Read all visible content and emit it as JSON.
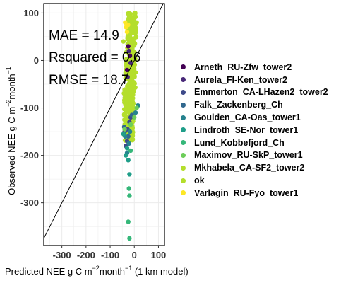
{
  "chart_data": {
    "type": "scatter",
    "stats": {
      "mae": "MAE = 14.9",
      "rsquared": "Rsquared = 0.6",
      "rmse": "RMSE = 18.7"
    },
    "xlabel_main": "Predicted NEE g C m",
    "xlabel_sup1": "−2",
    "xlabel_mid": "month",
    "xlabel_sup2": "−1",
    "xlabel_tail": " (1 km model)",
    "ylabel_main": "Observed NEE g C m",
    "ylabel_sup1": "−2",
    "ylabel_mid": "month",
    "ylabel_sup2": "−1",
    "xlim": [
      -375,
      125
    ],
    "ylim": [
      -390,
      120
    ],
    "x_ticks": [
      -300,
      -200,
      -100,
      0,
      100
    ],
    "x_tick_labels": [
      "-300",
      "-200",
      "-100",
      "0",
      "100"
    ],
    "y_ticks": [
      -300,
      -200,
      -100,
      0,
      100
    ],
    "y_tick_labels": [
      "-300",
      "-200",
      "-100",
      "0",
      "100"
    ],
    "grid": true,
    "reference_line": "1:1",
    "legend_position": "right",
    "series": [
      {
        "name": "Arneth_RU-Zfw_tower2",
        "color": "#440154",
        "points": [
          [
            -25,
            30
          ],
          [
            -18,
            10
          ],
          [
            -30,
            -20
          ]
        ]
      },
      {
        "name": "Aurela_FI-Ken_tower2",
        "color": "#482878",
        "points": [
          [
            -22,
            20
          ],
          [
            -15,
            -5
          ],
          [
            -28,
            -35
          ]
        ]
      },
      {
        "name": "Emmerton_CA-LHazen2_tower2",
        "color": "#3E4A89",
        "points": [
          [
            -35,
            -180
          ],
          [
            -20,
            -130
          ],
          [
            -40,
            -150
          ],
          [
            -30,
            -170
          ],
          [
            -15,
            -120
          ],
          [
            -28,
            -145
          ]
        ]
      },
      {
        "name": "Falk_Zackenberg_Ch",
        "color": "#31688E",
        "points": [
          [
            -42,
            -140
          ],
          [
            -25,
            -160
          ],
          [
            -10,
            -115
          ]
        ]
      },
      {
        "name": "Goulden_CA-Oas_tower1",
        "color": "#26828E",
        "points": [
          [
            -38,
            -160
          ],
          [
            -22,
            -175
          ],
          [
            5,
            -110
          ],
          [
            15,
            -95
          ],
          [
            -30,
            -195
          ],
          [
            -18,
            -150
          ]
        ]
      },
      {
        "name": "Lindroth_SE-Nor_tower1",
        "color": "#1F9E89",
        "points": [
          [
            -30,
            -185
          ],
          [
            -25,
            -210
          ],
          [
            -20,
            -240
          ],
          [
            -45,
            -155
          ],
          [
            -35,
            -200
          ]
        ]
      },
      {
        "name": "Lund_Kobbefjord_Ch",
        "color": "#35B779",
        "points": [
          [
            -22,
            -270
          ],
          [
            -20,
            -285
          ],
          [
            -25,
            -340
          ],
          [
            -20,
            -375
          ],
          [
            -15,
            -190
          ]
        ]
      },
      {
        "name": "Maximov_RU-SkP_tower1",
        "color": "#6DCD59",
        "points": [
          [
            10,
            -100
          ],
          [
            -15,
            -135
          ],
          [
            -40,
            -145
          ],
          [
            0,
            -120
          ]
        ]
      },
      {
        "name": "Mkhabela_CA-SF2_tower2",
        "color": "#B4DE2C",
        "points": [
          [
            -45,
            40
          ],
          [
            -20,
            60
          ],
          [
            10,
            80
          ],
          [
            -5,
            20
          ],
          [
            -30,
            -60
          ]
        ]
      },
      {
        "name": "ok",
        "color": "#B4DE2C",
        "bulk": true
      },
      {
        "name": "Varlagin_RU-Fyo_tower1",
        "color": "#FDE725",
        "points": [
          [
            -38,
            80
          ],
          [
            -34,
            70
          ],
          [
            -30,
            60
          ],
          [
            -26,
            75
          ]
        ]
      }
    ]
  }
}
